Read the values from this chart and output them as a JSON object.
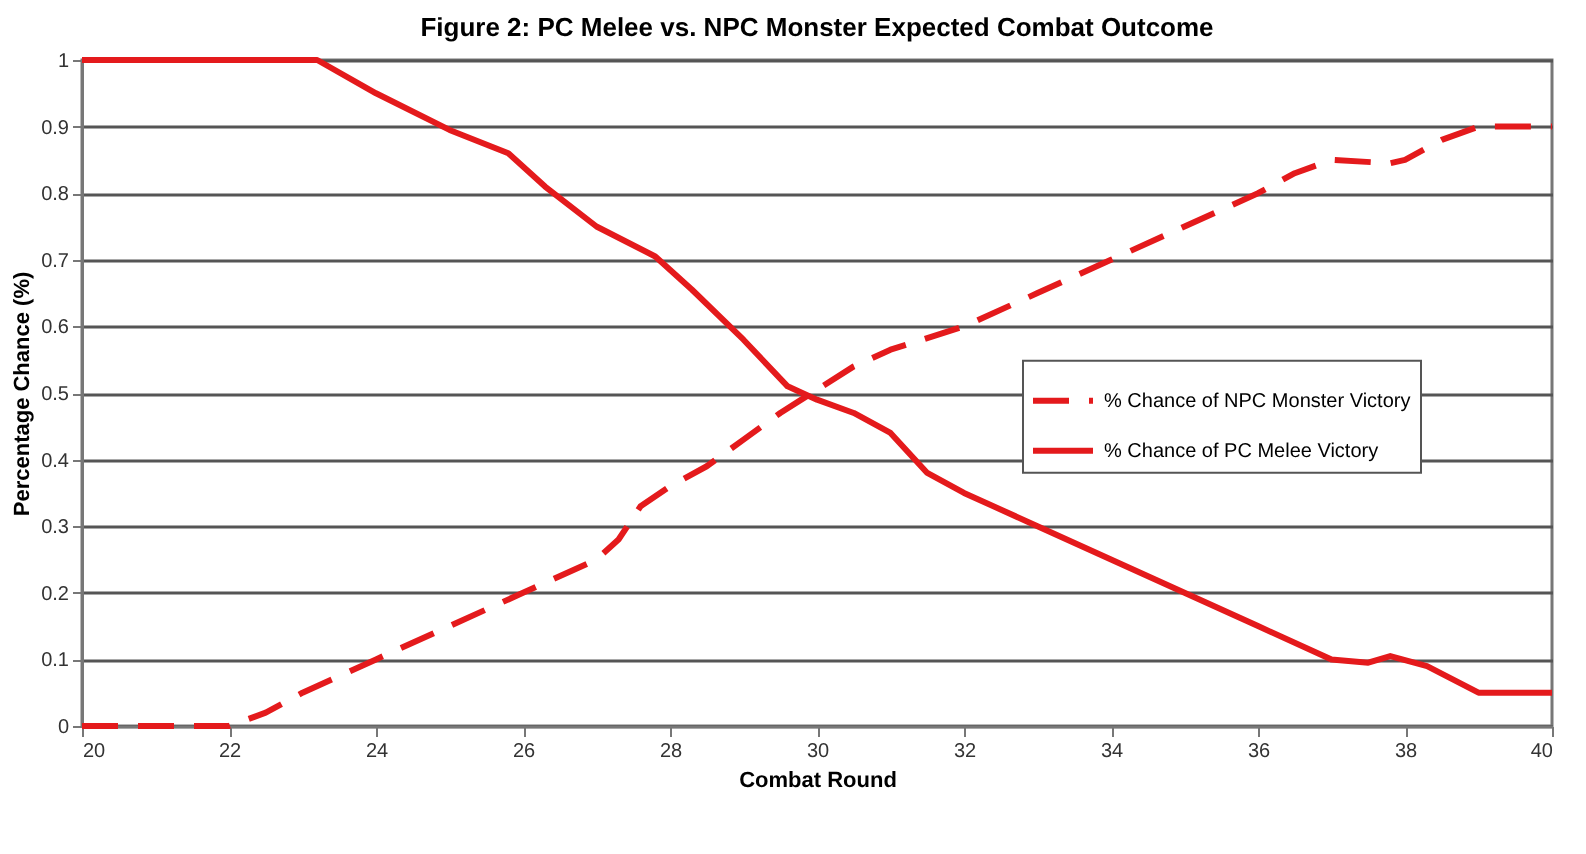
{
  "chart_data": {
    "type": "line",
    "title": "Figure 2: PC Melee vs. NPC Monster Expected Combat Outcome",
    "xlabel": "Combat Round",
    "ylabel": "Percentage Chance (%)",
    "xlim": [
      20,
      40
    ],
    "xticks": [
      20,
      22,
      24,
      26,
      28,
      30,
      32,
      34,
      36,
      38,
      40
    ],
    "ylim": [
      0,
      1
    ],
    "yticks": [
      0,
      0.1,
      0.2,
      0.3,
      0.4,
      0.5,
      0.6,
      0.7,
      0.8,
      0.9,
      1
    ],
    "grid": "y",
    "legend": "right",
    "series": [
      {
        "name": "% Chance of NPC Monster Victory",
        "color": "#e41a1c",
        "line_style": "dashed",
        "x": [
          20,
          21,
          22,
          22.5,
          23,
          24,
          25,
          26,
          27,
          27.3,
          27.6,
          28,
          28.5,
          29,
          29.5,
          30,
          30.5,
          31,
          32,
          33,
          34,
          35,
          36,
          36.5,
          37,
          37.8,
          38,
          38.5,
          39,
          40
        ],
        "values": [
          0,
          0,
          0,
          0.02,
          0.05,
          0.1,
          0.15,
          0.2,
          0.25,
          0.28,
          0.33,
          0.36,
          0.39,
          0.43,
          0.47,
          0.505,
          0.54,
          0.565,
          0.6,
          0.65,
          0.7,
          0.75,
          0.8,
          0.83,
          0.85,
          0.845,
          0.85,
          0.88,
          0.9,
          0.9
        ]
      },
      {
        "name": "% Chance of PC Melee Victory",
        "color": "#e41a1c",
        "line_style": "solid",
        "x": [
          20,
          21,
          22,
          23,
          23.2,
          24,
          25,
          25.8,
          26.3,
          27,
          27.8,
          28.3,
          29,
          29.6,
          30,
          30.5,
          31,
          31.5,
          32,
          33,
          34,
          35,
          36,
          37,
          37.5,
          37.8,
          38.3,
          39,
          39.5,
          40
        ],
        "values": [
          1,
          1,
          1,
          1,
          1,
          0.95,
          0.895,
          0.86,
          0.81,
          0.75,
          0.705,
          0.655,
          0.58,
          0.51,
          0.49,
          0.47,
          0.44,
          0.38,
          0.35,
          0.3,
          0.25,
          0.2,
          0.15,
          0.1,
          0.095,
          0.105,
          0.09,
          0.05,
          0.05,
          0.05
        ]
      }
    ]
  }
}
